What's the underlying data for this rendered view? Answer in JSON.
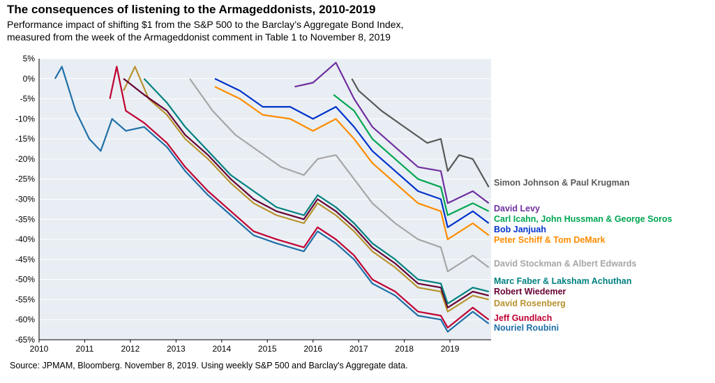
{
  "title": "The consequences of listening to the Armageddonists, 2010-2019",
  "subtitle_line1": "Performance impact of shifting $1 from the S&P 500 to the Barclay’s Aggregate Bond Index,",
  "subtitle_line2": "measured from the week of the Armageddonist comment in Table 1 to November 8, 2019",
  "source": "Source: JPMAM, Bloomberg. November 8, 2019. Using weekly S&P 500 and Barclay's Aggregate data.",
  "chart_data": {
    "type": "line",
    "xlim": [
      2010,
      2019.9
    ],
    "ylim": [
      -65,
      5
    ],
    "x_ticks": [
      "2010",
      "2011",
      "2012",
      "2013",
      "2014",
      "2015",
      "2016",
      "2017",
      "2018",
      "2019"
    ],
    "y_ticks": [
      "5%",
      "0%",
      "-5%",
      "-10%",
      "-15%",
      "-20%",
      "-25%",
      "-30%",
      "-35%",
      "-40%",
      "-45%",
      "-50%",
      "-55%",
      "-60%",
      "-65%"
    ],
    "series": [
      {
        "name": "Simon Johnson & Paul Krugman",
        "color": "#595959",
        "end": -27,
        "points": [
          [
            2016.85,
            0
          ],
          [
            2017.0,
            -3
          ],
          [
            2017.5,
            -8
          ],
          [
            2018.0,
            -12
          ],
          [
            2018.5,
            -16
          ],
          [
            2018.8,
            -15
          ],
          [
            2018.95,
            -23
          ],
          [
            2019.2,
            -19
          ],
          [
            2019.5,
            -20
          ],
          [
            2019.85,
            -27
          ]
        ]
      },
      {
        "name": "David Levy",
        "color": "#7030a0",
        "end": -30.5,
        "points": [
          [
            2015.6,
            -2
          ],
          [
            2016.0,
            -1
          ],
          [
            2016.5,
            4
          ],
          [
            2016.9,
            -5
          ],
          [
            2017.3,
            -12
          ],
          [
            2017.8,
            -17
          ],
          [
            2018.3,
            -22
          ],
          [
            2018.8,
            -23
          ],
          [
            2018.95,
            -31
          ],
          [
            2019.5,
            -28
          ],
          [
            2019.85,
            -31
          ]
        ]
      },
      {
        "name": "Carl Icahn, John Hussman & George Soros",
        "color": "#00a651",
        "end": -33,
        "points": [
          [
            2016.45,
            -4
          ],
          [
            2016.9,
            -8
          ],
          [
            2017.3,
            -15
          ],
          [
            2017.8,
            -20
          ],
          [
            2018.3,
            -25
          ],
          [
            2018.8,
            -27
          ],
          [
            2018.95,
            -34
          ],
          [
            2019.5,
            -31
          ],
          [
            2019.85,
            -33
          ]
        ]
      },
      {
        "name": "Bob Janjuah",
        "color": "#0033cc",
        "end": -36,
        "points": [
          [
            2013.85,
            0
          ],
          [
            2014.4,
            -3
          ],
          [
            2014.9,
            -7
          ],
          [
            2015.5,
            -7
          ],
          [
            2016.0,
            -10
          ],
          [
            2016.5,
            -7
          ],
          [
            2016.9,
            -12
          ],
          [
            2017.3,
            -18
          ],
          [
            2017.8,
            -23
          ],
          [
            2018.3,
            -28
          ],
          [
            2018.8,
            -30
          ],
          [
            2018.95,
            -37
          ],
          [
            2019.5,
            -33
          ],
          [
            2019.85,
            -36
          ]
        ]
      },
      {
        "name": "Peter Schiff & Tom DeMark",
        "color": "#ff8c00",
        "end": -39,
        "points": [
          [
            2013.85,
            -2
          ],
          [
            2014.4,
            -5
          ],
          [
            2014.9,
            -9
          ],
          [
            2015.5,
            -10
          ],
          [
            2016.0,
            -13
          ],
          [
            2016.5,
            -10
          ],
          [
            2016.9,
            -15
          ],
          [
            2017.3,
            -21
          ],
          [
            2017.8,
            -26
          ],
          [
            2018.3,
            -31
          ],
          [
            2018.8,
            -33
          ],
          [
            2018.95,
            -40
          ],
          [
            2019.5,
            -36
          ],
          [
            2019.85,
            -39
          ]
        ]
      },
      {
        "name": "David Stockman & Albert Edwards",
        "color": "#a6a6a6",
        "end": -47,
        "points": [
          [
            2013.3,
            0
          ],
          [
            2013.8,
            -8
          ],
          [
            2014.3,
            -14
          ],
          [
            2014.8,
            -18
          ],
          [
            2015.3,
            -22
          ],
          [
            2015.8,
            -24
          ],
          [
            2016.1,
            -20
          ],
          [
            2016.5,
            -19
          ],
          [
            2016.9,
            -25
          ],
          [
            2017.3,
            -31
          ],
          [
            2017.8,
            -36
          ],
          [
            2018.3,
            -40
          ],
          [
            2018.8,
            -42
          ],
          [
            2018.95,
            -48
          ],
          [
            2019.5,
            -44
          ],
          [
            2019.85,
            -47
          ]
        ]
      },
      {
        "name": "Marc Faber & Laksham Achuthan",
        "color": "#008080",
        "end": -52.5,
        "points": [
          [
            2012.3,
            0
          ],
          [
            2012.8,
            -6
          ],
          [
            2013.2,
            -12
          ],
          [
            2013.7,
            -18
          ],
          [
            2014.2,
            -24
          ],
          [
            2014.7,
            -28
          ],
          [
            2015.2,
            -32
          ],
          [
            2015.8,
            -34
          ],
          [
            2016.1,
            -29
          ],
          [
            2016.5,
            -32
          ],
          [
            2016.9,
            -36
          ],
          [
            2017.3,
            -41
          ],
          [
            2017.8,
            -45
          ],
          [
            2018.3,
            -50
          ],
          [
            2018.8,
            -51
          ],
          [
            2018.95,
            -56
          ],
          [
            2019.5,
            -52
          ],
          [
            2019.85,
            -53
          ]
        ]
      },
      {
        "name": "Robert Wiedemer",
        "color": "#660033",
        "end": -54,
        "points": [
          [
            2011.85,
            0
          ],
          [
            2012.3,
            -4
          ],
          [
            2012.8,
            -8
          ],
          [
            2013.2,
            -14
          ],
          [
            2013.7,
            -19
          ],
          [
            2014.2,
            -25
          ],
          [
            2014.7,
            -30
          ],
          [
            2015.2,
            -33
          ],
          [
            2015.8,
            -35
          ],
          [
            2016.1,
            -30
          ],
          [
            2016.5,
            -33
          ],
          [
            2016.9,
            -37
          ],
          [
            2017.3,
            -42
          ],
          [
            2017.8,
            -46
          ],
          [
            2018.3,
            -51
          ],
          [
            2018.8,
            -52
          ],
          [
            2018.95,
            -57
          ],
          [
            2019.5,
            -53
          ],
          [
            2019.85,
            -54
          ]
        ]
      },
      {
        "name": "David Rosenberg",
        "color": "#b8922e",
        "end": -55,
        "points": [
          [
            2011.85,
            -3
          ],
          [
            2012.1,
            3
          ],
          [
            2012.4,
            -5
          ],
          [
            2012.8,
            -9
          ],
          [
            2013.2,
            -15
          ],
          [
            2013.7,
            -20
          ],
          [
            2014.2,
            -26
          ],
          [
            2014.7,
            -31
          ],
          [
            2015.2,
            -34
          ],
          [
            2015.8,
            -36
          ],
          [
            2016.1,
            -31
          ],
          [
            2016.5,
            -34
          ],
          [
            2016.9,
            -38
          ],
          [
            2017.3,
            -43
          ],
          [
            2017.8,
            -47
          ],
          [
            2018.3,
            -52
          ],
          [
            2018.8,
            -53
          ],
          [
            2018.95,
            -58
          ],
          [
            2019.5,
            -54
          ],
          [
            2019.85,
            -55
          ]
        ]
      },
      {
        "name": "Jeff Gundlach",
        "color": "#c00033",
        "end": -59.5,
        "points": [
          [
            2011.55,
            -5
          ],
          [
            2011.7,
            3
          ],
          [
            2011.9,
            -8
          ],
          [
            2012.3,
            -11
          ],
          [
            2012.8,
            -16
          ],
          [
            2013.2,
            -22
          ],
          [
            2013.7,
            -28
          ],
          [
            2014.2,
            -33
          ],
          [
            2014.7,
            -38
          ],
          [
            2015.2,
            -40
          ],
          [
            2015.8,
            -42
          ],
          [
            2016.1,
            -37
          ],
          [
            2016.5,
            -40
          ],
          [
            2016.9,
            -44
          ],
          [
            2017.3,
            -50
          ],
          [
            2017.8,
            -53
          ],
          [
            2018.3,
            -58
          ],
          [
            2018.8,
            -59
          ],
          [
            2018.95,
            -62
          ],
          [
            2019.5,
            -57
          ],
          [
            2019.85,
            -60
          ]
        ]
      },
      {
        "name": "Nouriel Roubini",
        "color": "#1f6fa8",
        "end": -60.5,
        "points": [
          [
            2010.35,
            0
          ],
          [
            2010.5,
            3
          ],
          [
            2010.8,
            -8
          ],
          [
            2011.1,
            -15
          ],
          [
            2011.35,
            -18
          ],
          [
            2011.6,
            -10
          ],
          [
            2011.9,
            -13
          ],
          [
            2012.3,
            -12
          ],
          [
            2012.8,
            -17
          ],
          [
            2013.2,
            -23
          ],
          [
            2013.7,
            -29
          ],
          [
            2014.2,
            -34
          ],
          [
            2014.7,
            -39
          ],
          [
            2015.2,
            -41
          ],
          [
            2015.8,
            -43
          ],
          [
            2016.1,
            -38
          ],
          [
            2016.5,
            -41
          ],
          [
            2016.9,
            -45
          ],
          [
            2017.3,
            -51
          ],
          [
            2017.8,
            -54
          ],
          [
            2018.3,
            -59
          ],
          [
            2018.8,
            -60
          ],
          [
            2018.95,
            -63
          ],
          [
            2019.5,
            -58
          ],
          [
            2019.85,
            -61
          ]
        ]
      }
    ],
    "legend_placement": "right, labels at line ends",
    "background_color": "#e8eef3"
  }
}
